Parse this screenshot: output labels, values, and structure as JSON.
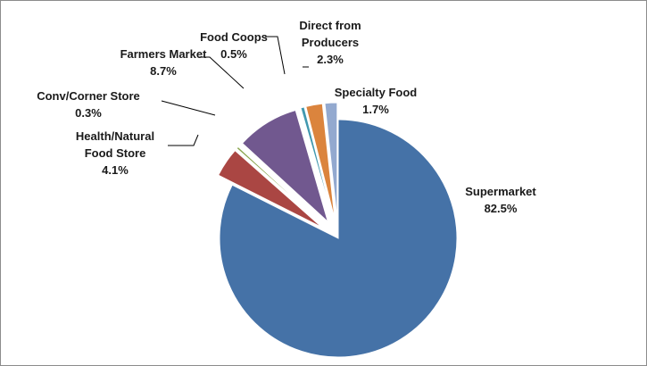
{
  "chart_data": {
    "type": "pie",
    "exploded": true,
    "start_angle_deg": 0,
    "direction": "clockwise",
    "slices": [
      {
        "name": "Supermarket",
        "label_lines": [
          "Supermarket"
        ],
        "pct_text": "82.5%",
        "value": 82.5,
        "color": "#4572A7"
      },
      {
        "name": "Health/Natural Food Store",
        "label_lines": [
          "Health/Natural",
          "Food Store"
        ],
        "pct_text": "4.1%",
        "value": 4.1,
        "color": "#AA4643"
      },
      {
        "name": "Conv/Corner Store",
        "label_lines": [
          "Conv/Corner Store"
        ],
        "pct_text": "0.3%",
        "value": 0.3,
        "color": "#89A54E"
      },
      {
        "name": "Farmers Market",
        "label_lines": [
          "Farmers Market"
        ],
        "pct_text": "8.7%",
        "value": 8.7,
        "color": "#71588F"
      },
      {
        "name": "Food Coops",
        "label_lines": [
          "Food Coops"
        ],
        "pct_text": "0.5%",
        "value": 0.5,
        "color": "#4198AF"
      },
      {
        "name": "Direct from Producers",
        "label_lines": [
          "Direct from",
          "Producers"
        ],
        "pct_text": "2.3%",
        "value": 2.3,
        "color": "#DB843D"
      },
      {
        "name": "Specialty Food",
        "label_lines": [
          "Specialty Food"
        ],
        "pct_text": "1.7%",
        "value": 1.7,
        "color": "#93A9CF"
      }
    ]
  }
}
